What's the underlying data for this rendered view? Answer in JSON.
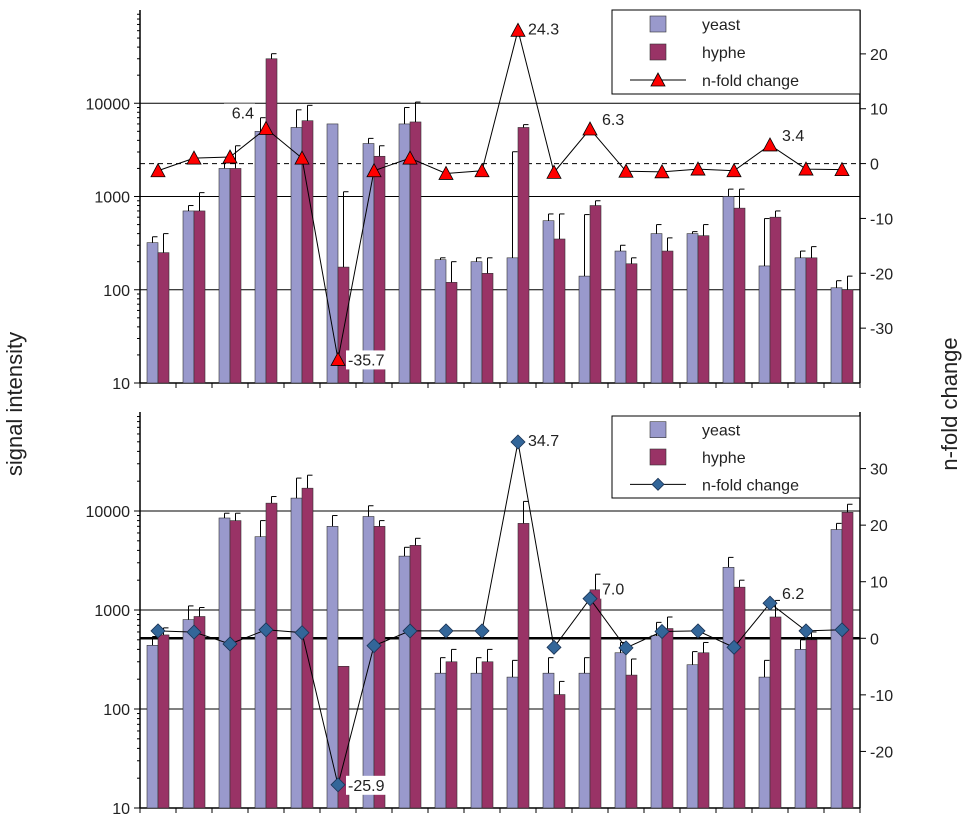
{
  "labels": {
    "ylabel_left": "signal intensity",
    "ylabel_right": "n-fold change"
  },
  "colors": {
    "yeast": "#9999cc",
    "hyphe": "#993366",
    "triangle_marker": "#ff0000",
    "diamond_marker": "#336699"
  },
  "chart_data": [
    {
      "type": "bar",
      "scale": "log",
      "ylim": [
        10,
        100000
      ],
      "yticks": [
        "10",
        "100",
        "1000",
        "10000"
      ],
      "y2lim": [
        -40,
        28
      ],
      "y2ticks": [
        "-30",
        "-20",
        "-10",
        "0",
        "10",
        "20"
      ],
      "grid": true,
      "legend_position": "top-right",
      "legend": [
        "yeast",
        "hyphe",
        "n-fold change"
      ],
      "marker": "triangle",
      "series": [
        {
          "name": "yeast",
          "values": [
            320,
            700,
            2000,
            5000,
            5500,
            6000,
            3700,
            6000,
            210,
            200,
            220,
            550,
            140,
            260,
            400,
            400,
            1000,
            180,
            220,
            105
          ],
          "err": [
            50,
            100,
            300,
            2000,
            3000,
            0,
            500,
            3000,
            10,
            20,
            2800,
            100,
            500,
            40,
            100,
            20,
            200,
            400,
            40,
            20
          ]
        },
        {
          "name": "hyphe",
          "values": [
            250,
            700,
            2000,
            30000,
            6500,
            175,
            2700,
            6300,
            120,
            150,
            5500,
            350,
            800,
            190,
            260,
            380,
            750,
            600,
            220,
            100
          ],
          "err": [
            150,
            400,
            1500,
            4000,
            3000,
            950,
            800,
            4000,
            80,
            70,
            400,
            300,
            100,
            30,
            100,
            120,
            450,
            100,
            70,
            40
          ]
        },
        {
          "name": "n-fold change",
          "values": [
            -1.3,
            1.0,
            1.2,
            6.4,
            1.0,
            -35.7,
            -1.3,
            1.0,
            -1.8,
            -1.3,
            24.3,
            -1.6,
            6.3,
            -1.4,
            -1.5,
            -1.0,
            -1.3,
            3.4,
            -1.0,
            -1.1
          ]
        }
      ],
      "annotations": [
        {
          "index": 3,
          "text": "6.4"
        },
        {
          "index": 5,
          "text": "-35.7"
        },
        {
          "index": 10,
          "text": "24.3"
        },
        {
          "index": 12,
          "text": "6.3"
        },
        {
          "index": 17,
          "text": "3.4"
        }
      ]
    },
    {
      "type": "bar",
      "scale": "log",
      "ylim": [
        10,
        100000
      ],
      "yticks": [
        "10",
        "100",
        "1000",
        "10000"
      ],
      "y2lim": [
        -30,
        40
      ],
      "y2ticks": [
        "-20",
        "-10",
        "0",
        "10",
        "20",
        "30"
      ],
      "grid": true,
      "legend_position": "top-right",
      "legend": [
        "yeast",
        "hyphe",
        "n-fold change"
      ],
      "marker": "diamond",
      "series": [
        {
          "name": "yeast",
          "values": [
            440,
            800,
            8500,
            5500,
            13500,
            7000,
            8800,
            3500,
            230,
            230,
            210,
            230,
            230,
            370,
            550,
            280,
            2700,
            210,
            400,
            6500
          ],
          "err": [
            100,
            300,
            1000,
            2500,
            8000,
            2000,
            2500,
            800,
            100,
            100,
            100,
            100,
            100,
            100,
            200,
            100,
            700,
            100,
            100,
            1000
          ]
        },
        {
          "name": "hyphe",
          "values": [
            560,
            860,
            8000,
            12000,
            17000,
            270,
            7000,
            4500,
            300,
            300,
            7500,
            140,
            1600,
            220,
            650,
            370,
            1700,
            850,
            500,
            9700
          ],
          "err": [
            100,
            200,
            1500,
            2000,
            6000,
            0,
            1000,
            800,
            100,
            100,
            5000,
            50,
            700,
            100,
            200,
            100,
            300,
            400,
            100,
            2000
          ]
        },
        {
          "name": "n-fold change",
          "values": [
            1.3,
            1.1,
            -1.0,
            1.5,
            1.0,
            -25.9,
            -1.3,
            1.3,
            1.3,
            1.3,
            34.7,
            -1.6,
            7.0,
            -1.7,
            1.2,
            1.3,
            -1.6,
            6.2,
            1.3,
            1.5
          ]
        }
      ],
      "annotations": [
        {
          "index": 5,
          "text": "-25.9"
        },
        {
          "index": 10,
          "text": "34.7"
        },
        {
          "index": 12,
          "text": "7.0"
        },
        {
          "index": 17,
          "text": "6.2"
        }
      ]
    }
  ]
}
